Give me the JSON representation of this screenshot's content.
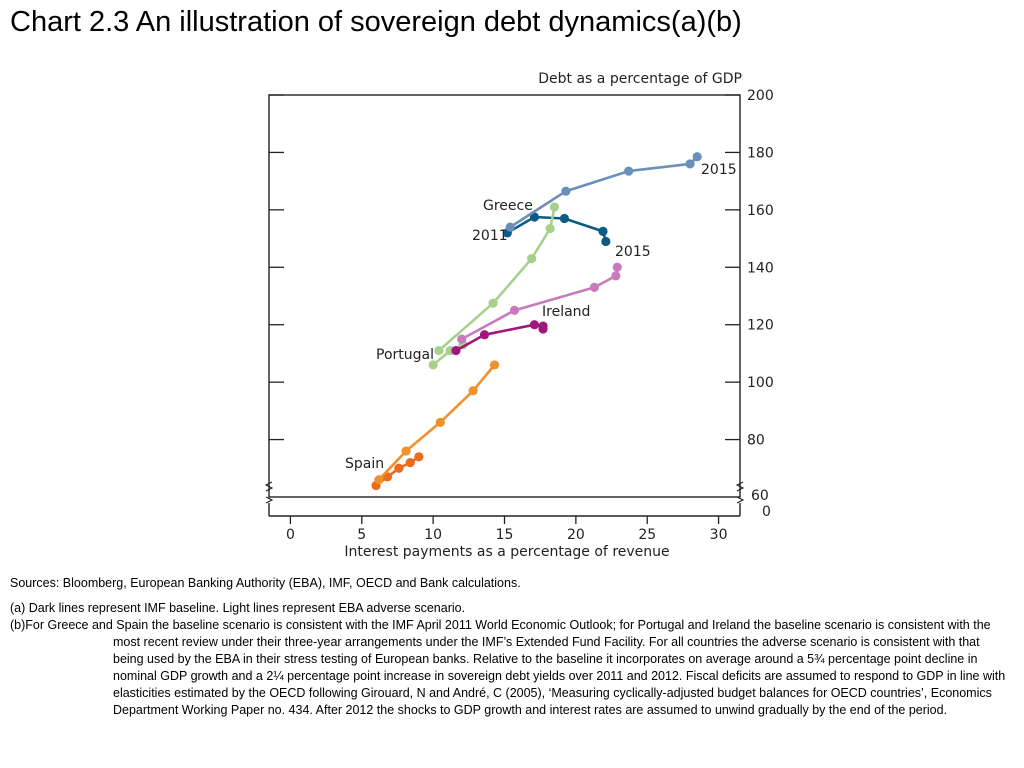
{
  "title": "Chart 2.3  An illustration of sovereign debt dynamics(a)(b)",
  "chart_data": {
    "type": "line",
    "title": "Chart 2.3  An illustration of sovereign debt dynamics(a)(b)",
    "ylabel": "Debt as a percentage of GDP",
    "xlabel": "Interest payments as a percentage of revenue",
    "xlim": [
      -1.5,
      31.5
    ],
    "ylim": [
      60,
      200
    ],
    "x_ticks": [
      0,
      5,
      10,
      15,
      20,
      25,
      30
    ],
    "x_tick_labels": [
      "0",
      "5",
      "10",
      "15",
      "20",
      "25",
      "30"
    ],
    "y_ticks": [
      80,
      100,
      120,
      140,
      160,
      180,
      200
    ],
    "y_tick_labels": [
      "80",
      "100",
      "120",
      "140",
      "160",
      "180",
      "200"
    ],
    "y_break_labels": [
      "60",
      "0"
    ],
    "grid": false,
    "series": [
      {
        "name": "Greece",
        "scenario": "IMF baseline",
        "color": "#0b5a87",
        "x": [
          15.2,
          17.1,
          19.2,
          21.9,
          22.1
        ],
        "y": [
          152,
          157.5,
          157,
          152.5,
          149
        ]
      },
      {
        "scenario": "EBA adverse",
        "color": "#6a8fbb",
        "x": [
          15.4,
          19.3,
          23.7,
          28.0,
          28.5
        ],
        "y": [
          154,
          166.5,
          173.5,
          176,
          178.5
        ]
      },
      {
        "name": "Portugal",
        "scenario": "IMF baseline",
        "color": "#a8d08d",
        "x": [
          10.0,
          11.2,
          12.1
        ],
        "y": [
          106,
          111,
          113
        ]
      },
      {
        "scenario": "EBA adverse",
        "color": "#a8d08d",
        "x": [
          10.4,
          14.2,
          16.9,
          18.2,
          18.5
        ],
        "y": [
          111,
          127.5,
          143,
          153.5,
          161
        ]
      },
      {
        "name": "Ireland",
        "scenario": "IMF baseline",
        "color": "#a0187a",
        "x": [
          11.6,
          13.6,
          17.1,
          17.7,
          17.7
        ],
        "y": [
          111,
          116.5,
          120,
          119.5,
          118.5
        ]
      },
      {
        "scenario": "EBA adverse",
        "color": "#c77bbd",
        "x": [
          12.0,
          15.7,
          21.3,
          22.8,
          22.9
        ],
        "y": [
          115,
          125,
          133,
          137,
          140
        ]
      },
      {
        "name": "Spain",
        "scenario": "IMF baseline",
        "color": "#ea6a1e",
        "x": [
          6.0,
          6.8,
          7.6,
          8.4,
          9.0
        ],
        "y": [
          64,
          67,
          70,
          72,
          74
        ]
      },
      {
        "scenario": "EBA adverse",
        "color": "#f0912c",
        "x": [
          6.2,
          8.1,
          10.5,
          12.8,
          14.3
        ],
        "y": [
          66,
          76,
          86,
          97,
          106
        ]
      }
    ],
    "annotations": [
      "Greece",
      "2011",
      "2015",
      "2015",
      "Ireland",
      "Portugal",
      "Spain"
    ]
  },
  "labels": {
    "greece": "Greece",
    "greece_2011": "2011",
    "greece_2015": "2015",
    "ireland": "Ireland",
    "ireland_2015": "2015",
    "portugal": "Portugal",
    "spain": "Spain"
  },
  "notes": {
    "sources": "Sources:  Bloomberg, European Banking Authority (EBA), IMF, OECD and Bank calculations.",
    "note_a": "(a)  Dark lines represent IMF baseline.  Light lines represent EBA adverse scenario.",
    "note_b": "(b)For Greece and Spain the baseline scenario is consistent with the IMF April 2011 World Economic Outlook;  for Portugal and Ireland the baseline scenario is consistent with the most recent review under their three-year arrangements under the IMF’s Extended Fund Facility.  For all countries the adverse scenario is consistent with that being used by the EBA in their stress testing of European banks.  Relative to the baseline it incorporates on average around a 5¾ percentage point decline in nominal GDP growth and a 2¼ percentage point increase in sovereign debt yields over 2011 and 2012.  Fiscal deficits are assumed to respond to GDP in line with elasticities estimated by the OECD following Girouard, N and André, C (2005), ‘Measuring cyclically-adjusted budget balances for OECD countries’, Economics Department Working Paper no. 434.  After 2012 the shocks to GDP growth and interest rates are assumed to unwind gradually by the end of the period."
  }
}
